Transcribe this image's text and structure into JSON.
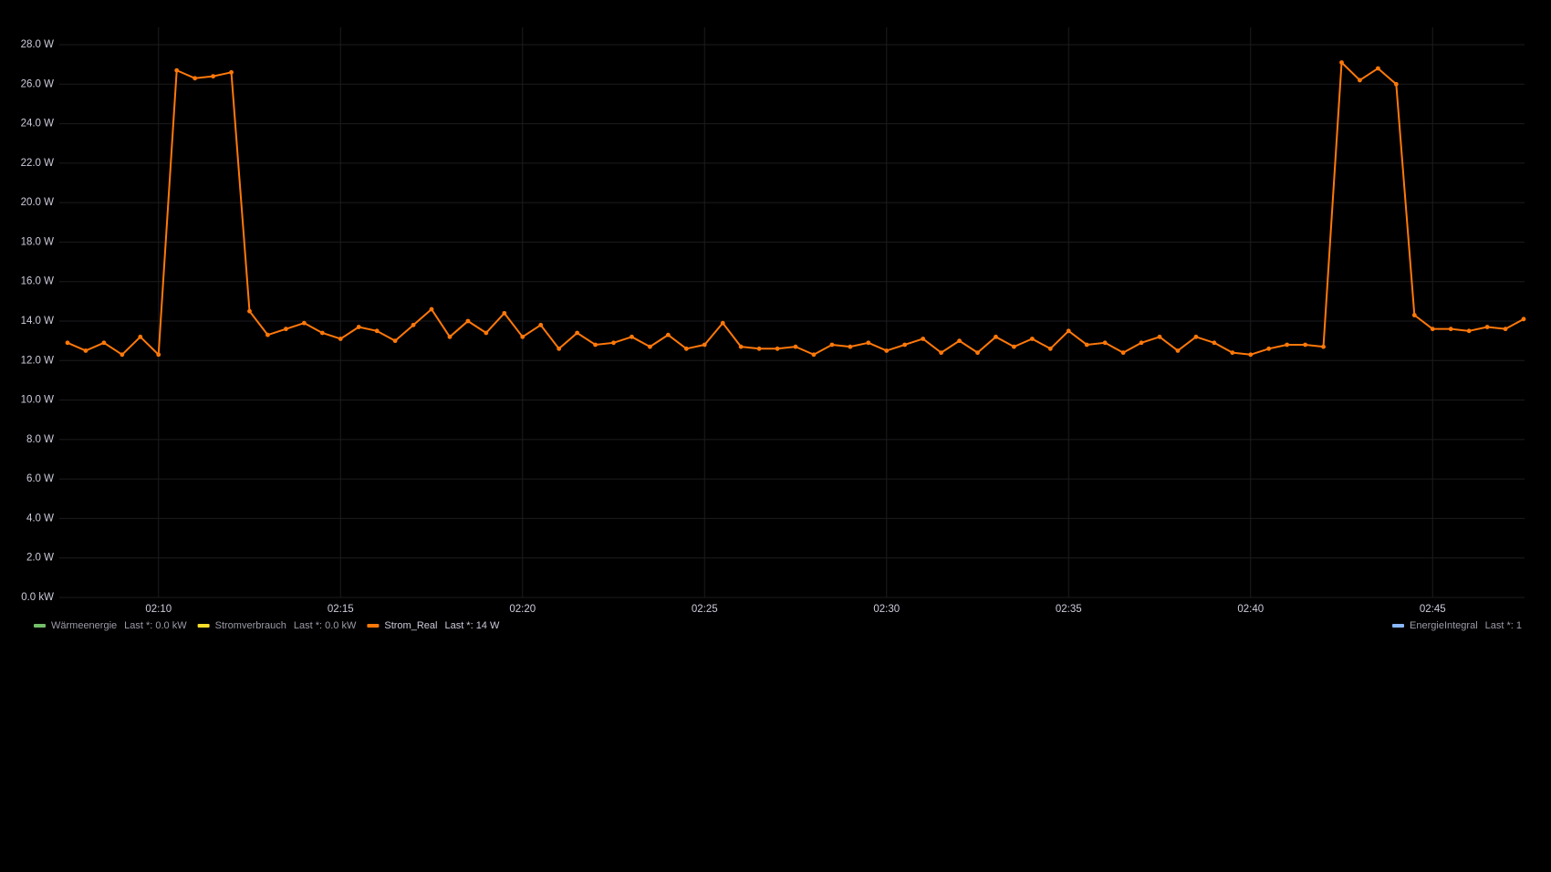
{
  "chart_data": {
    "type": "line",
    "x": [
      "02:07:30",
      "02:08:00",
      "02:08:30",
      "02:09:00",
      "02:09:30",
      "02:10:00",
      "02:10:30",
      "02:11:00",
      "02:11:30",
      "02:12:00",
      "02:12:30",
      "02:13:00",
      "02:13:30",
      "02:14:00",
      "02:14:30",
      "02:15:00",
      "02:15:30",
      "02:16:00",
      "02:16:30",
      "02:17:00",
      "02:17:30",
      "02:18:00",
      "02:18:30",
      "02:19:00",
      "02:19:30",
      "02:20:00",
      "02:20:30",
      "02:21:00",
      "02:21:30",
      "02:22:00",
      "02:22:30",
      "02:23:00",
      "02:23:30",
      "02:24:00",
      "02:24:30",
      "02:25:00",
      "02:25:30",
      "02:26:00",
      "02:26:30",
      "02:27:00",
      "02:27:30",
      "02:28:00",
      "02:28:30",
      "02:29:00",
      "02:29:30",
      "02:30:00",
      "02:30:30",
      "02:31:00",
      "02:31:30",
      "02:32:00",
      "02:32:30",
      "02:33:00",
      "02:33:30",
      "02:34:00",
      "02:34:30",
      "02:35:00",
      "02:35:30",
      "02:36:00",
      "02:36:30",
      "02:37:00",
      "02:37:30",
      "02:38:00",
      "02:38:30",
      "02:39:00",
      "02:39:30",
      "02:40:00",
      "02:40:30",
      "02:41:00",
      "02:41:30",
      "02:42:00",
      "02:42:30",
      "02:43:00",
      "02:43:30",
      "02:44:00",
      "02:44:30",
      "02:45:00",
      "02:45:30",
      "02:46:00",
      "02:46:30",
      "02:47:00",
      "02:47:30"
    ],
    "series": [
      {
        "name": "Wärmeenergie",
        "color": "#73bf69",
        "legend_value": "Last *: 0.0 kW"
      },
      {
        "name": "Stromverbrauch",
        "color": "#fade2a",
        "legend_value": "Last *: 0.0 kW"
      },
      {
        "name": "Strom_Real",
        "color": "#ff780a",
        "legend_value": "Last *: 14 W",
        "values": [
          12.9,
          12.5,
          12.9,
          12.3,
          13.2,
          12.3,
          26.7,
          26.3,
          26.4,
          26.6,
          14.5,
          13.3,
          13.6,
          13.9,
          13.4,
          13.1,
          13.7,
          13.5,
          13.0,
          13.8,
          14.6,
          13.2,
          14.0,
          13.4,
          14.4,
          13.2,
          13.8,
          12.6,
          13.4,
          12.8,
          12.9,
          13.2,
          12.7,
          13.3,
          12.6,
          12.8,
          13.9,
          12.7,
          12.6,
          12.6,
          12.7,
          12.3,
          12.8,
          12.7,
          12.9,
          12.5,
          12.8,
          13.1,
          12.4,
          13.0,
          12.4,
          13.2,
          12.7,
          13.1,
          12.6,
          13.5,
          12.8,
          12.9,
          12.4,
          12.9,
          13.2,
          12.5,
          13.2,
          12.9,
          12.4,
          12.3,
          12.6,
          12.8,
          12.8,
          12.7,
          27.1,
          26.2,
          26.8,
          26.0,
          14.3,
          13.6,
          13.6,
          13.5,
          13.7,
          13.6,
          14.1
        ]
      },
      {
        "name": "EnergieIntegral",
        "color": "#8ab8ff",
        "legend_value": "Last *: 1"
      }
    ],
    "xlim": [
      "02:07:30",
      "02:47:30"
    ],
    "xticks": [
      "02:10",
      "02:15",
      "02:20",
      "02:25",
      "02:30",
      "02:35",
      "02:40",
      "02:45"
    ],
    "ylim": [
      0,
      28
    ],
    "yticks": [
      {
        "value": 0,
        "label": "0.0 kW"
      },
      {
        "value": 2,
        "label": "2.0 W"
      },
      {
        "value": 4,
        "label": "4.0 W"
      },
      {
        "value": 6,
        "label": "6.0 W"
      },
      {
        "value": 8,
        "label": "8.0 W"
      },
      {
        "value": 10,
        "label": "10.0 W"
      },
      {
        "value": 12,
        "label": "12.0 W"
      },
      {
        "value": 14,
        "label": "14.0 W"
      },
      {
        "value": 16,
        "label": "16.0 W"
      },
      {
        "value": 18,
        "label": "18.0 W"
      },
      {
        "value": 20,
        "label": "20.0 W"
      },
      {
        "value": 22,
        "label": "22.0 W"
      },
      {
        "value": 24,
        "label": "24.0 W"
      },
      {
        "value": 26,
        "label": "26.0 W"
      },
      {
        "value": 28,
        "label": "28.0 W"
      }
    ],
    "grid": true
  }
}
